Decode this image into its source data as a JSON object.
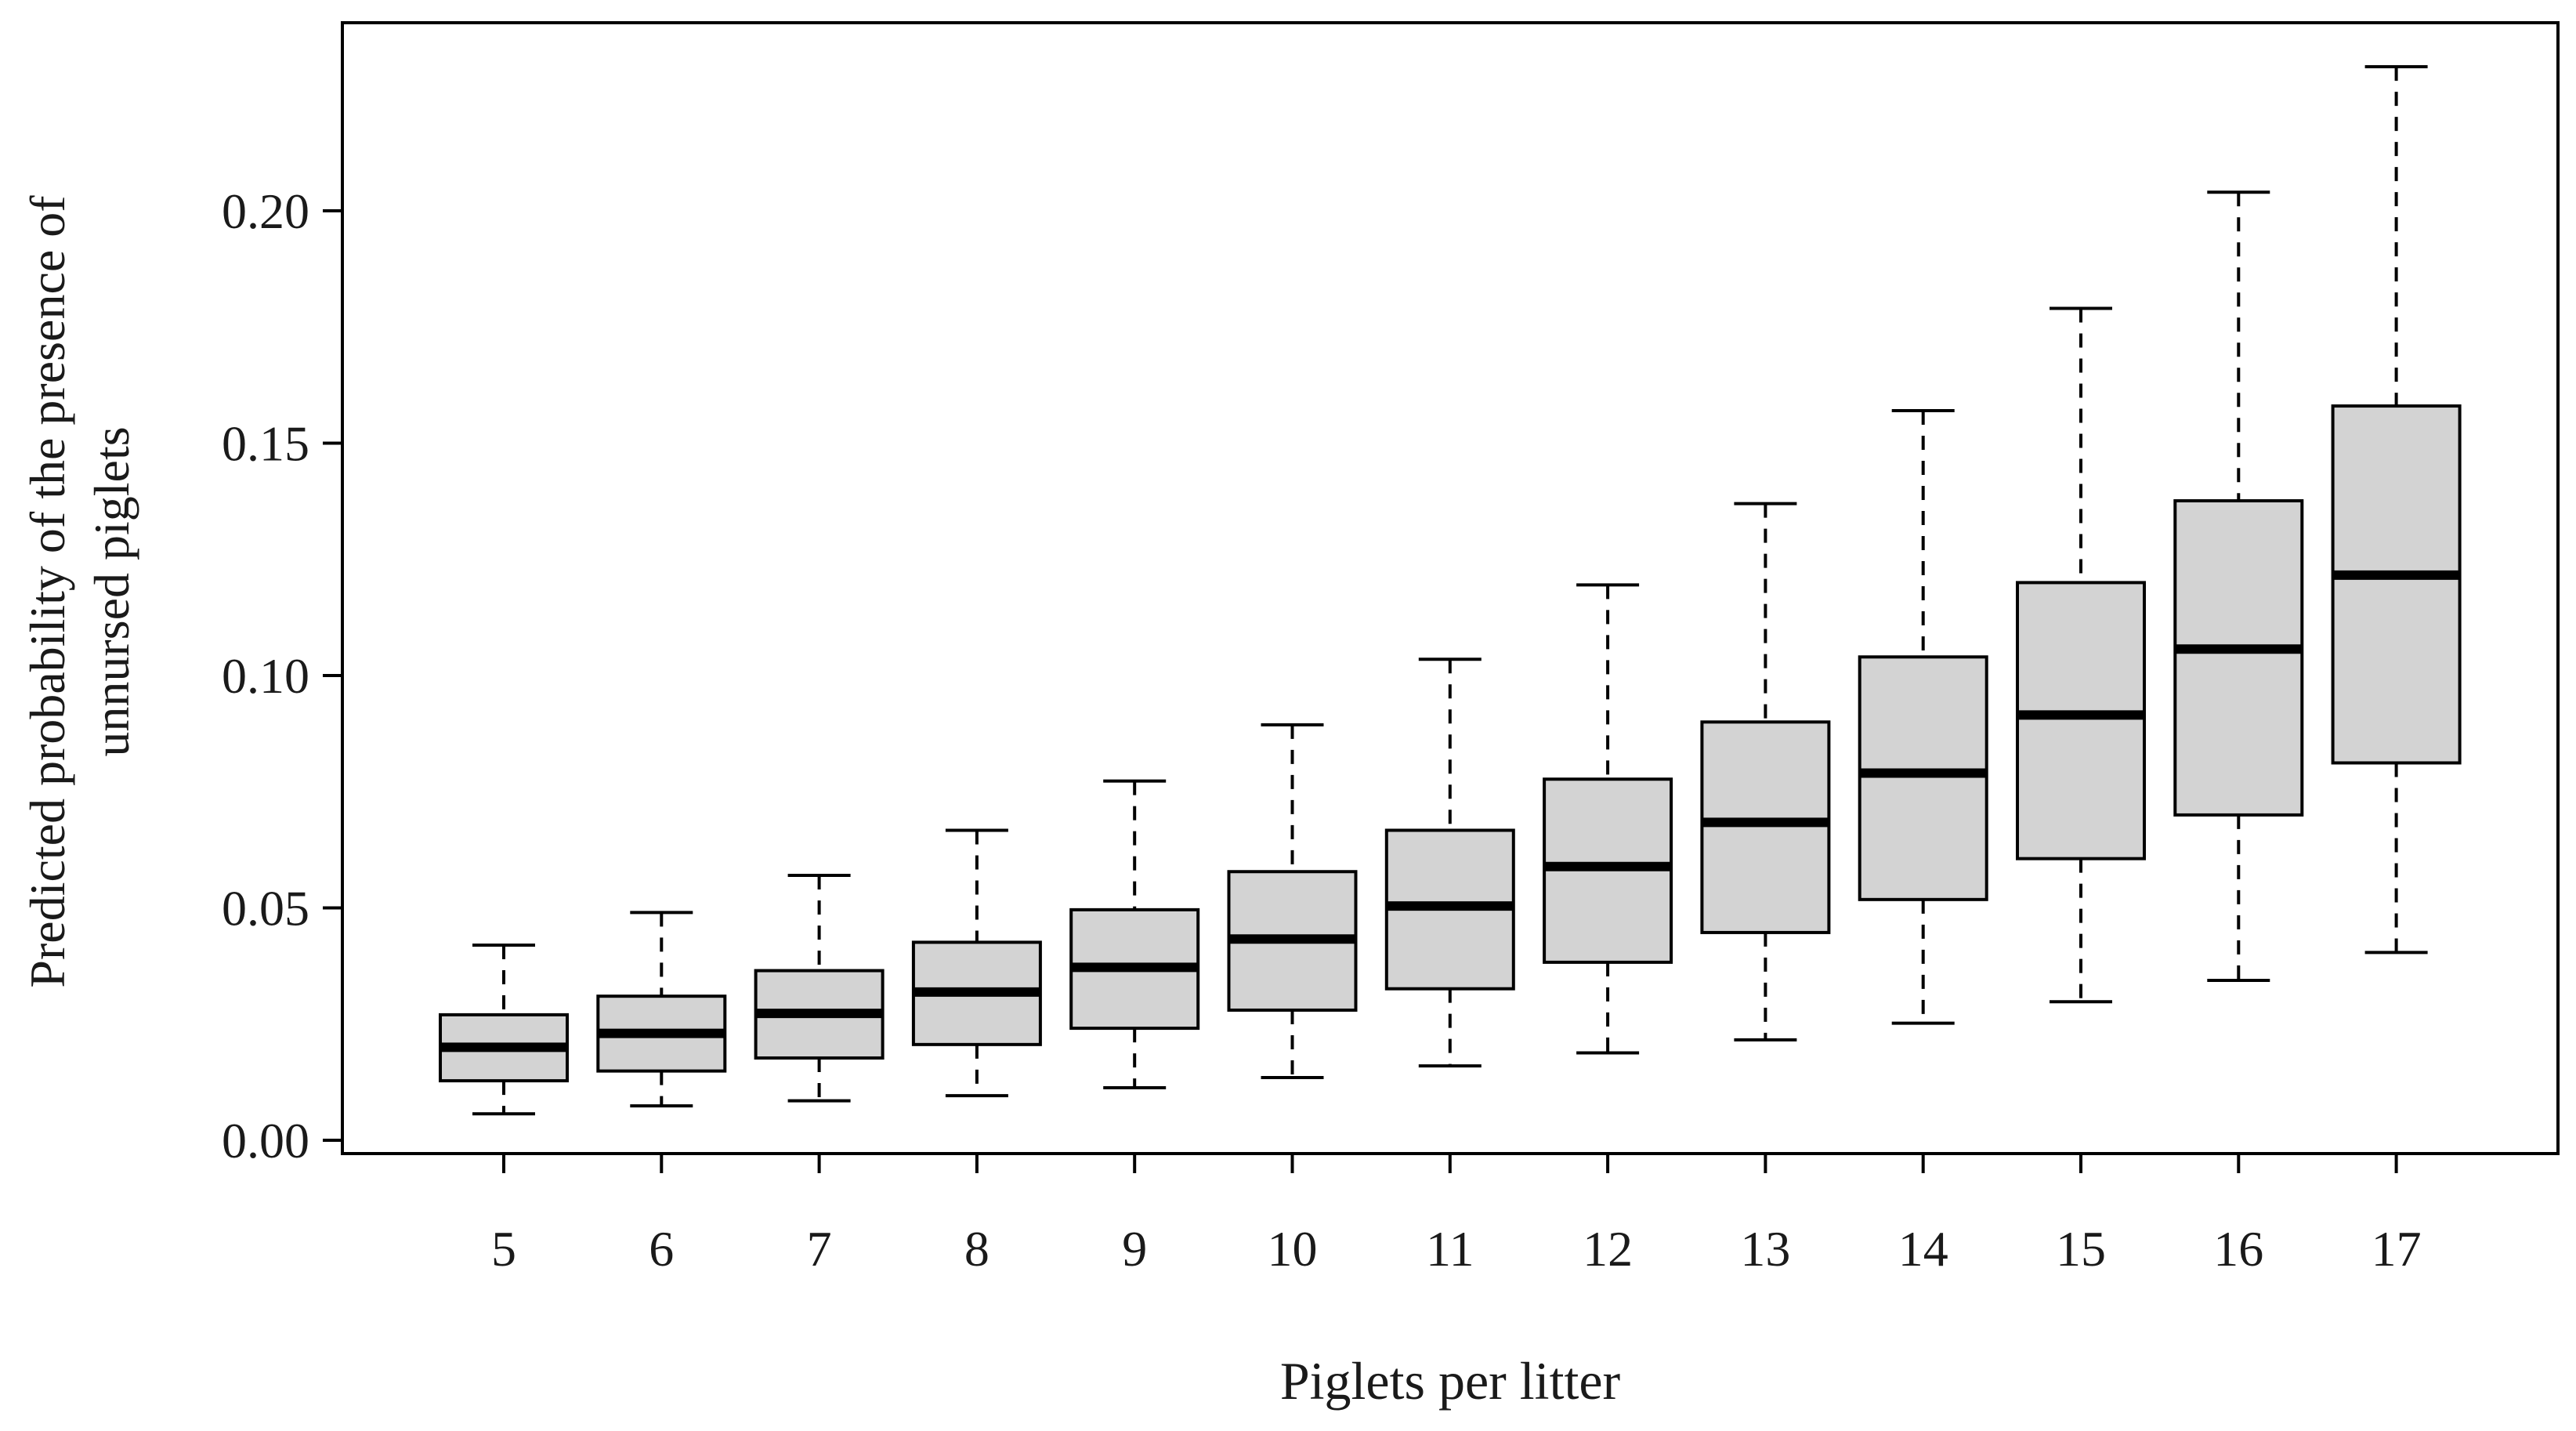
{
  "chart_data": {
    "type": "boxplot",
    "title": "",
    "xlabel": "Piglets per litter",
    "ylabel_lines": [
      "Predicted probability of the presence of",
      "unnursed piglets"
    ],
    "ylim": [
      -0.005,
      0.235
    ],
    "yticks": [
      "0.00",
      "0.05",
      "0.10",
      "0.15",
      "0.20"
    ],
    "ytick_values": [
      0.0,
      0.05,
      0.1,
      0.15,
      0.2
    ],
    "categories": [
      "5",
      "6",
      "7",
      "8",
      "9",
      "10",
      "11",
      "12",
      "13",
      "14",
      "15",
      "16",
      "17"
    ],
    "grid": false,
    "colors": {
      "box_fill": "#d3d3d3",
      "stroke": "#000000"
    },
    "boxes": [
      {
        "whisker_low": 0.0057,
        "q1": 0.0128,
        "median": 0.02,
        "q3": 0.027,
        "whisker_high": 0.042
      },
      {
        "whisker_low": 0.0074,
        "q1": 0.0149,
        "median": 0.023,
        "q3": 0.031,
        "whisker_high": 0.049
      },
      {
        "whisker_low": 0.0085,
        "q1": 0.0177,
        "median": 0.0273,
        "q3": 0.0365,
        "whisker_high": 0.057
      },
      {
        "whisker_low": 0.0096,
        "q1": 0.0206,
        "median": 0.0319,
        "q3": 0.0426,
        "whisker_high": 0.0667
      },
      {
        "whisker_low": 0.0113,
        "q1": 0.0241,
        "median": 0.0372,
        "q3": 0.0496,
        "whisker_high": 0.0773
      },
      {
        "whisker_low": 0.0135,
        "q1": 0.028,
        "median": 0.0433,
        "q3": 0.0578,
        "whisker_high": 0.0894
      },
      {
        "whisker_low": 0.016,
        "q1": 0.0326,
        "median": 0.0504,
        "q3": 0.0667,
        "whisker_high": 0.1035
      },
      {
        "whisker_low": 0.0188,
        "q1": 0.0383,
        "median": 0.0589,
        "q3": 0.0777,
        "whisker_high": 0.1195
      },
      {
        "whisker_low": 0.0216,
        "q1": 0.0447,
        "median": 0.0684,
        "q3": 0.09,
        "whisker_high": 0.137
      },
      {
        "whisker_low": 0.0252,
        "q1": 0.0518,
        "median": 0.079,
        "q3": 0.104,
        "whisker_high": 0.157
      },
      {
        "whisker_low": 0.0298,
        "q1": 0.0606,
        "median": 0.0915,
        "q3": 0.12,
        "whisker_high": 0.179
      },
      {
        "whisker_low": 0.0344,
        "q1": 0.07,
        "median": 0.1057,
        "q3": 0.1376,
        "whisker_high": 0.204
      },
      {
        "whisker_low": 0.0404,
        "q1": 0.0812,
        "median": 0.1216,
        "q3": 0.158,
        "whisker_high": 0.231
      }
    ]
  }
}
